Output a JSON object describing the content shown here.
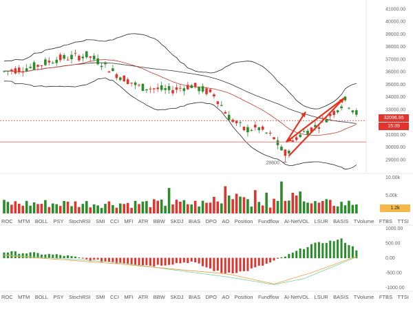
{
  "chart_data": [
    {
      "type": "candlestick",
      "name": "price",
      "ylim": [
        28000,
        41700
      ],
      "yticks": [
        "41000.00",
        "40000.00",
        "39000.00",
        "38000.00",
        "37000.00",
        "36000.00",
        "35000.00",
        "34000.00",
        "33000.00",
        "32000.00",
        "31000.00",
        "30000.00",
        "29000.00"
      ],
      "last_price": "32096.95",
      "countdown": "15:39",
      "low_annotation": "28800",
      "support_level": 30400,
      "arrows": [
        {
          "from": [
            0.0,
            0
          ],
          "to": [
            0.0,
            0
          ]
        }
      ],
      "candles_summary": "downtrend from ~37500 to ~28800 then rebound to ~33800, then pullback"
    },
    {
      "type": "bar",
      "name": "volume",
      "ylim": [
        0,
        11000
      ],
      "yticks": [
        "10.00k",
        "5.00k"
      ],
      "last_value": "1.2k"
    },
    {
      "type": "bar",
      "name": "oscillator",
      "ylim": [
        -1100,
        1100
      ],
      "yticks": [
        "1000.00",
        "500.00",
        "0.00",
        "-500.00",
        "-1000.00"
      ]
    }
  ],
  "indicator_tabs": [
    "ROC",
    "MTM",
    "BOLL",
    "PSY",
    "StochRSI",
    "SMI",
    "CCI",
    "MFI",
    "ATR",
    "BBW",
    "SKDJ",
    "BIAS",
    "DPO",
    "AO",
    "Position",
    "Fundflow",
    "AI-NetVOL",
    "LSUR",
    "BASIS",
    "TVolume",
    "FTBS",
    "TTSI"
  ],
  "colors": {
    "up": "#2a8c2a",
    "down": "#e0342f",
    "arrow": "#e8321e",
    "ma_red": "#c0392b",
    "ma_black": "#333333",
    "band": "#222222",
    "signal_green": "#7fd0a0",
    "signal_orange": "#f0a040",
    "support": "#f08080",
    "price_tag": "#e0342f",
    "vol_tag": "#f4b94a"
  }
}
